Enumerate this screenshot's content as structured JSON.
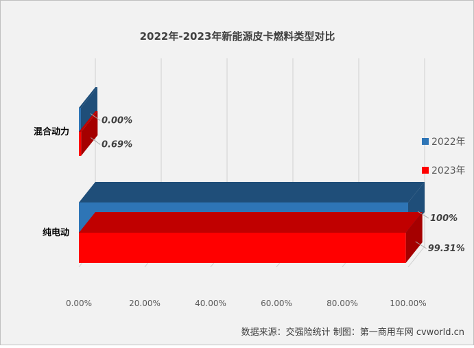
{
  "chart_data": {
    "type": "bar",
    "orientation": "horizontal",
    "style": "3d",
    "title": "2022年-2023年新能源皮卡燃料类型对比",
    "categories": [
      "混合动力",
      "纯电动"
    ],
    "series": [
      {
        "name": "2022年",
        "values": [
          0.0,
          100
        ],
        "labels": [
          "0.00%",
          "100%"
        ],
        "color": "#2e75b6",
        "top_color": "#1f4e79",
        "side_color": "#1f4e79"
      },
      {
        "name": "2023年",
        "values": [
          0.69,
          99.31
        ],
        "labels": [
          "0.69%",
          "99.31%"
        ],
        "color": "#ff0000",
        "top_color": "#c00000",
        "side_color": "#a50000"
      }
    ],
    "xlim": [
      0,
      100
    ],
    "xticks": [
      0,
      20,
      40,
      60,
      80,
      100
    ],
    "xtick_labels": [
      "0.00%",
      "20.00%",
      "40.00%",
      "60.00%",
      "80.00%",
      "100.00%"
    ],
    "grid": true,
    "legend_position": "right"
  },
  "footer": {
    "source": "数据来源：交强险统计 制图：第一商用车网 cvworld.cn"
  }
}
